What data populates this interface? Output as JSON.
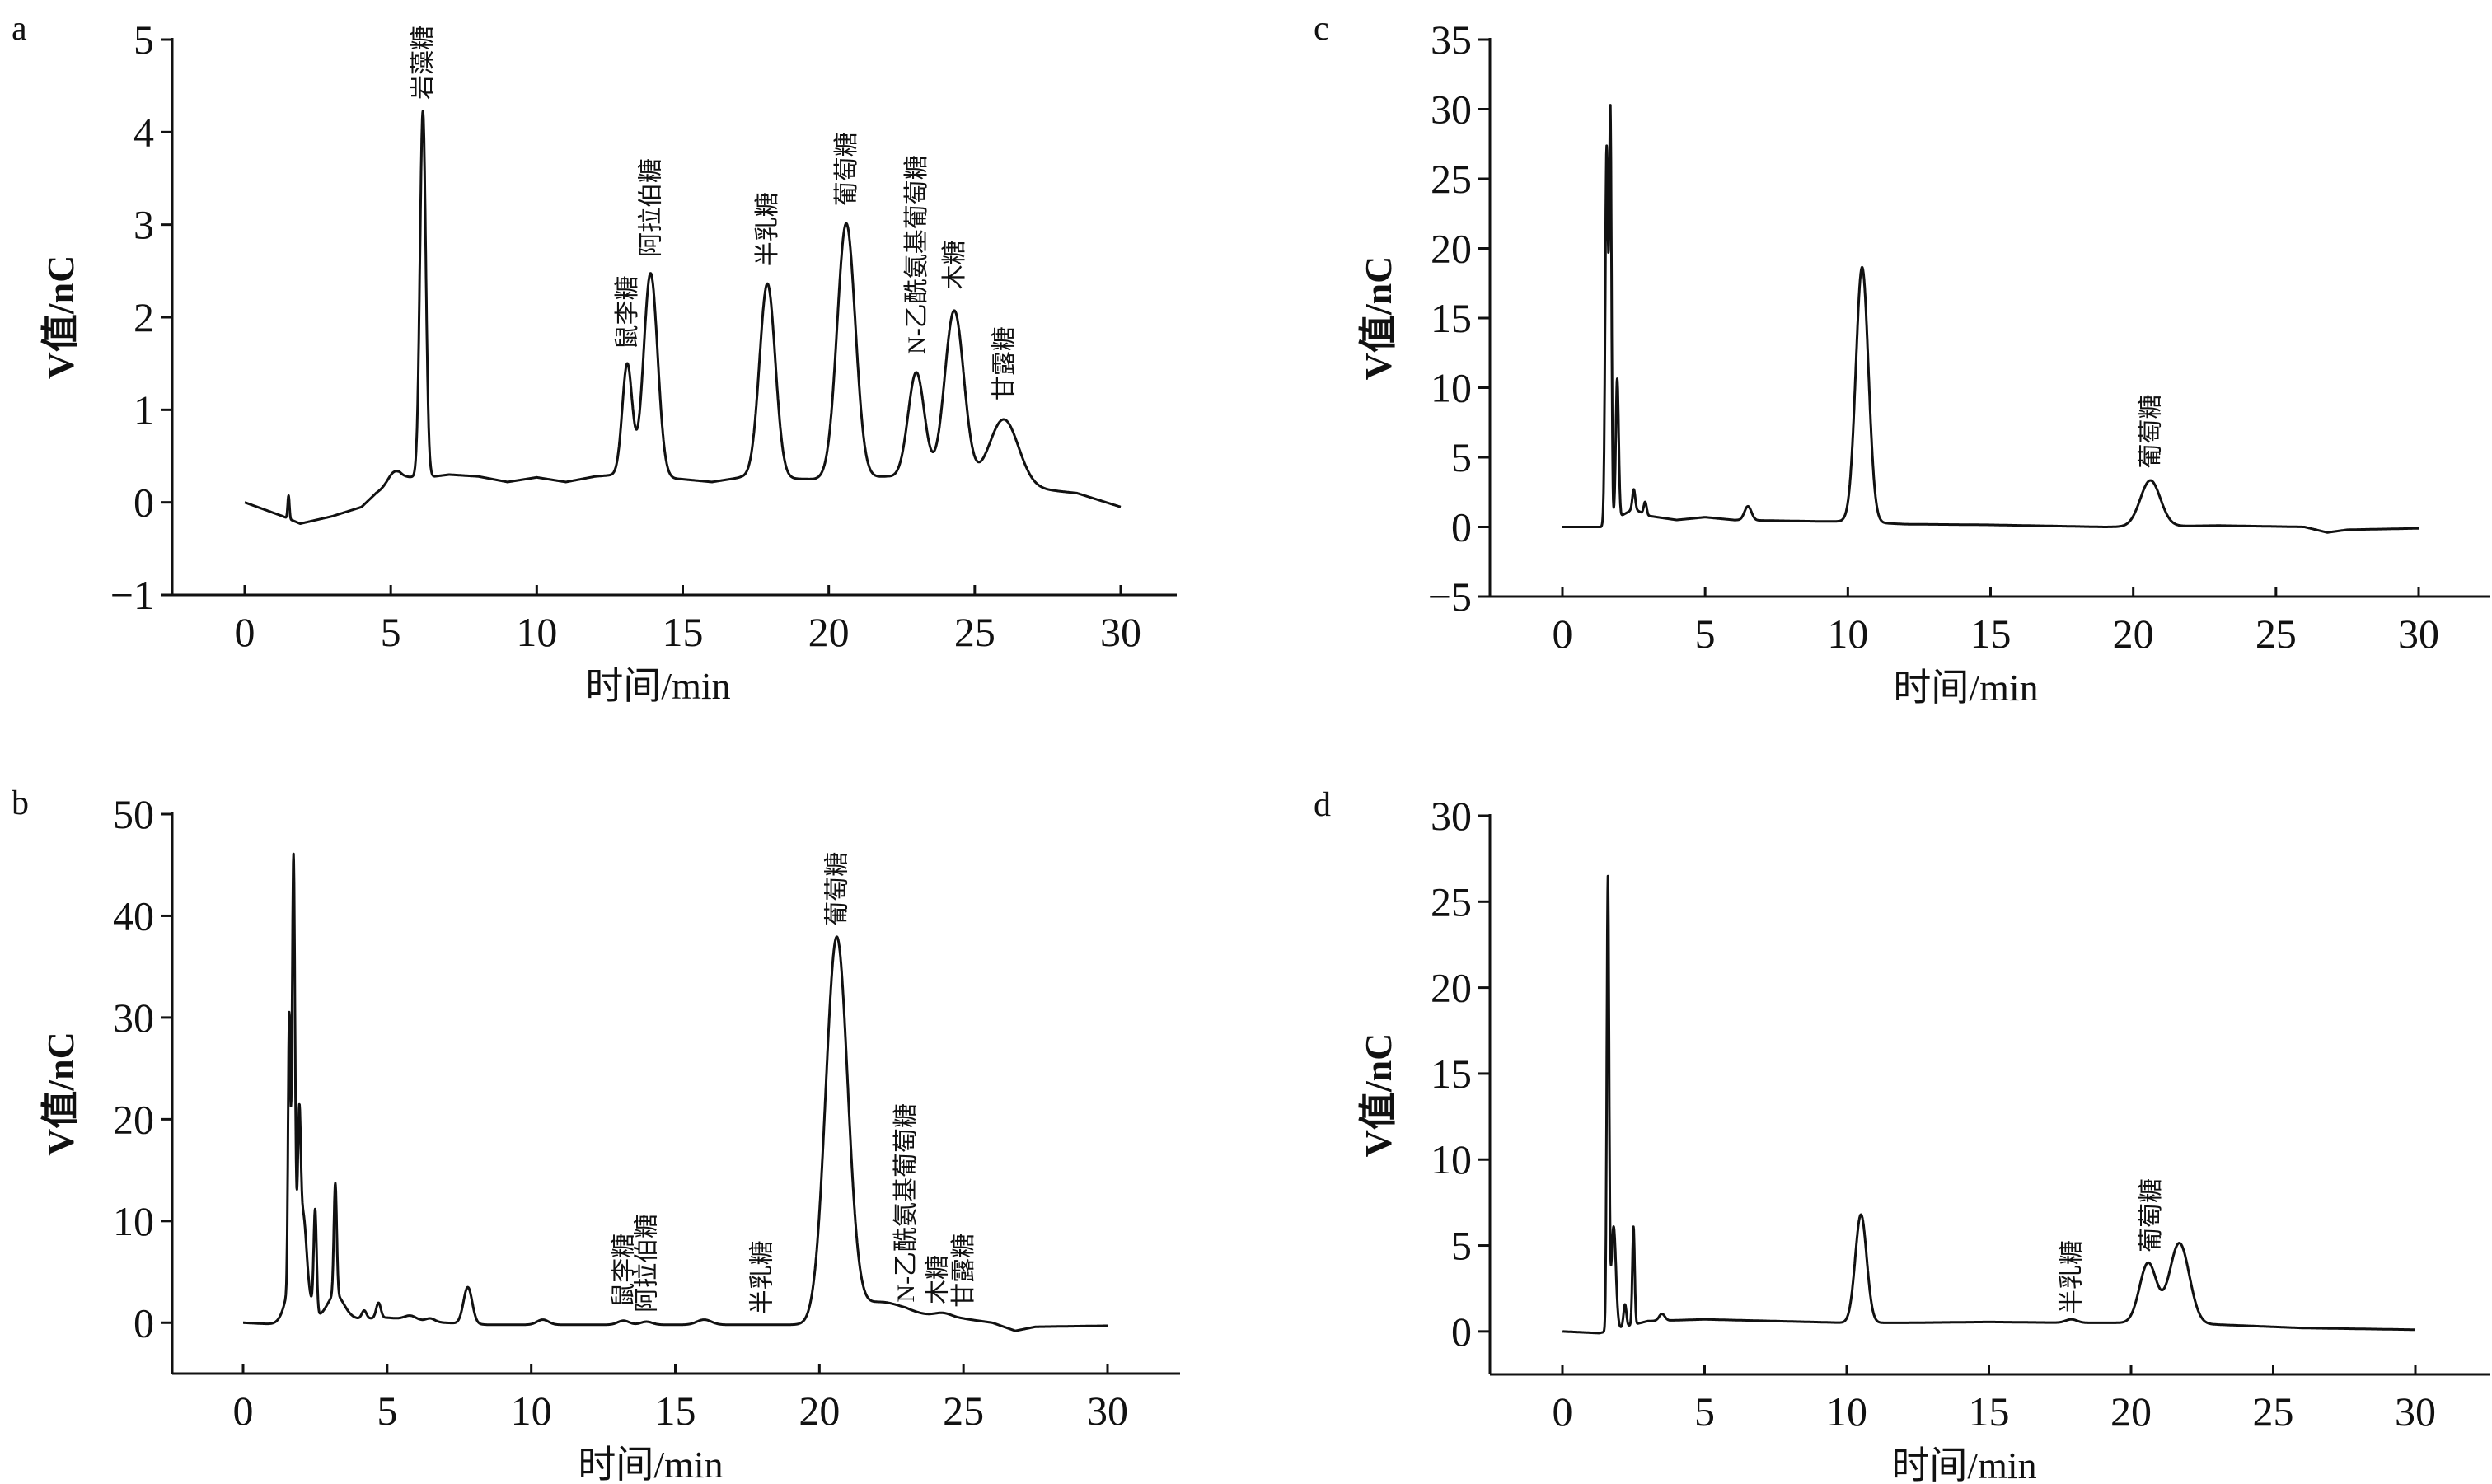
{
  "chart_data": [
    {
      "type": "line",
      "panel": "a",
      "xlabel": "时间/min",
      "ylabel": "V值/nC",
      "xlim": [
        0,
        30
      ],
      "ylim": [
        -1,
        5
      ],
      "xticks": [
        0,
        5,
        10,
        15,
        20,
        25,
        30
      ],
      "xtick_labels": [
        "0",
        "5",
        "10",
        "15",
        "20",
        "25",
        "30"
      ],
      "yticks": [
        -1,
        0,
        1,
        2,
        3,
        4,
        5
      ],
      "ytick_labels": [
        "−1",
        "0",
        "1",
        "2",
        "3",
        "4",
        "5"
      ],
      "baseline": [
        [
          0,
          0
        ],
        [
          1.3,
          -0.15
        ],
        [
          1.9,
          -0.23
        ],
        [
          3,
          -0.15
        ],
        [
          4,
          -0.05
        ],
        [
          4.5,
          0.1
        ],
        [
          5.3,
          0.27
        ],
        [
          6.5,
          0.28
        ],
        [
          7,
          0.3
        ],
        [
          8,
          0.28
        ],
        [
          9,
          0.22
        ],
        [
          10,
          0.27
        ],
        [
          11,
          0.22
        ],
        [
          12,
          0.28
        ],
        [
          12.8,
          0.3
        ],
        [
          15,
          0.25
        ],
        [
          16,
          0.22
        ],
        [
          17,
          0.27
        ],
        [
          19.5,
          0.25
        ],
        [
          22,
          0.28
        ],
        [
          27,
          0.15
        ],
        [
          28.5,
          0.1
        ],
        [
          29.5,
          0.0
        ],
        [
          30,
          -0.05
        ]
      ],
      "peaks": [
        [
          1.5,
          0.25,
          0.03
        ],
        [
          5.1,
          0.1,
          0.2
        ],
        [
          6.1,
          3.95,
          0.1
        ],
        [
          13.1,
          1.2,
          0.17
        ],
        [
          13.9,
          2.2,
          0.24
        ],
        [
          17.9,
          2.1,
          0.27
        ],
        [
          20.6,
          2.75,
          0.31
        ],
        [
          23.0,
          1.15,
          0.28
        ],
        [
          24.3,
          1.85,
          0.33
        ],
        [
          26.0,
          0.72,
          0.5
        ]
      ],
      "annotations": [
        {
          "text": "岩藻糖",
          "x": 6.1,
          "y": 4.35
        },
        {
          "text": "鼠李糖",
          "x": 13.1,
          "y": 1.65
        },
        {
          "text": "阿拉伯糖",
          "x": 13.9,
          "y": 2.65
        },
        {
          "text": "半乳糖",
          "x": 17.9,
          "y": 2.55
        },
        {
          "text": "葡萄糖",
          "x": 20.6,
          "y": 3.2
        },
        {
          "text": "N-乙酰氨基葡萄糖",
          "x": 23.0,
          "y": 1.6
        },
        {
          "text": "木糖",
          "x": 24.3,
          "y": 2.3
        },
        {
          "text": "甘露糖",
          "x": 26.0,
          "y": 1.1
        }
      ]
    },
    {
      "type": "line",
      "panel": "b",
      "xlabel": "时间/min",
      "ylabel": "V值/nC",
      "xlim": [
        0,
        30
      ],
      "ylim": [
        -5,
        50
      ],
      "xticks": [
        0,
        5,
        10,
        15,
        20,
        25,
        30
      ],
      "xtick_labels": [
        "0",
        "5",
        "10",
        "15",
        "20",
        "25",
        "30"
      ],
      "yticks": [
        0,
        10,
        20,
        30,
        40,
        50
      ],
      "ytick_labels": [
        "0",
        "10",
        "20",
        "30",
        "40",
        "50"
      ],
      "baseline": [
        [
          0,
          0
        ],
        [
          1.4,
          -0.2
        ],
        [
          3.5,
          0.3
        ],
        [
          5,
          0.5
        ],
        [
          7,
          0
        ],
        [
          8.5,
          -0.2
        ],
        [
          19.5,
          -0.2
        ],
        [
          23,
          0.8
        ],
        [
          25,
          0.4
        ],
        [
          26,
          0
        ],
        [
          26.8,
          -0.8
        ],
        [
          27.5,
          -0.4
        ],
        [
          30,
          -0.3
        ]
      ],
      "peaks": [
        [
          1.6,
          26,
          0.04
        ],
        [
          1.75,
          40,
          0.05
        ],
        [
          1.95,
          13,
          0.05
        ],
        [
          2.1,
          5,
          0.1
        ],
        [
          1.9,
          7,
          0.3
        ],
        [
          2.5,
          10,
          0.05
        ],
        [
          3.2,
          11,
          0.05
        ],
        [
          3.2,
          2.5,
          0.3
        ],
        [
          4.2,
          0.8,
          0.08
        ],
        [
          4.7,
          1.5,
          0.08
        ],
        [
          5.8,
          0.4,
          0.2
        ],
        [
          6.5,
          0.3,
          0.15
        ],
        [
          7.8,
          3.6,
          0.15
        ],
        [
          10.4,
          0.5,
          0.2
        ],
        [
          13.2,
          0.4,
          0.2
        ],
        [
          14.0,
          0.3,
          0.2
        ],
        [
          16.0,
          0.5,
          0.25
        ],
        [
          20.6,
          37.5,
          0.38
        ],
        [
          22.0,
          1.5,
          0.8
        ],
        [
          24.3,
          0.4,
          0.3
        ]
      ],
      "annotations": [
        {
          "text": "鼠李糖",
          "x": 13.2,
          "y": 1.5
        },
        {
          "text": "阿拉伯糖",
          "x": 14.0,
          "y": 1.0
        },
        {
          "text": "半乳糖",
          "x": 18.0,
          "y": 0.8
        },
        {
          "text": "葡萄糖",
          "x": 20.6,
          "y": 39
        },
        {
          "text": "N-乙酰氨基葡萄糖",
          "x": 23.0,
          "y": 2.0
        },
        {
          "text": "木糖",
          "x": 24.1,
          "y": 1.8
        },
        {
          "text": "甘露糖",
          "x": 25.0,
          "y": 1.5
        }
      ]
    },
    {
      "type": "line",
      "panel": "c",
      "xlabel": "时间/min",
      "ylabel": "V值/nC",
      "xlim": [
        0,
        30
      ],
      "ylim": [
        -5,
        35
      ],
      "xticks": [
        0,
        5,
        10,
        15,
        20,
        25,
        30
      ],
      "xtick_labels": [
        "0",
        "5",
        "10",
        "15",
        "20",
        "25",
        "30"
      ],
      "yticks": [
        -5,
        0,
        5,
        10,
        15,
        20,
        25,
        30,
        35
      ],
      "ytick_labels": [
        "−5",
        "0",
        "5",
        "10",
        "15",
        "20",
        "25",
        "30",
        "35"
      ],
      "baseline": [
        [
          0,
          0
        ],
        [
          1.35,
          0
        ],
        [
          2.5,
          1.3
        ],
        [
          3,
          0.8
        ],
        [
          4,
          0.5
        ],
        [
          5,
          0.7
        ],
        [
          6,
          0.5
        ],
        [
          9,
          0.4
        ],
        [
          10,
          0.4
        ],
        [
          12,
          0.2
        ],
        [
          15,
          0.15
        ],
        [
          19,
          0
        ],
        [
          23,
          0.1
        ],
        [
          26,
          0
        ],
        [
          26.8,
          -0.4
        ],
        [
          27.5,
          -0.2
        ],
        [
          30,
          -0.1
        ]
      ],
      "peaks": [
        [
          1.55,
          27,
          0.05
        ],
        [
          1.68,
          29,
          0.04
        ],
        [
          1.92,
          10,
          0.05
        ],
        [
          2.5,
          1.4,
          0.05
        ],
        [
          2.9,
          0.9,
          0.05
        ],
        [
          6.5,
          1.0,
          0.12
        ],
        [
          10.5,
          18.3,
          0.22
        ],
        [
          20.6,
          3.3,
          0.35
        ]
      ],
      "annotations": [
        {
          "text": "葡萄糖",
          "x": 20.6,
          "y": 4.2
        }
      ]
    },
    {
      "type": "line",
      "panel": "d",
      "xlabel": "时间/min",
      "ylabel": "V值/nC",
      "xlim": [
        0,
        30
      ],
      "ylim": [
        -2.5,
        30
      ],
      "xticks": [
        0,
        5,
        10,
        15,
        20,
        25,
        30
      ],
      "xtick_labels": [
        "0",
        "5",
        "10",
        "15",
        "20",
        "25",
        "30"
      ],
      "yticks": [
        0,
        5,
        10,
        15,
        20,
        25,
        30
      ],
      "ytick_labels": [
        "0",
        "5",
        "10",
        "15",
        "20",
        "25",
        "30"
      ],
      "baseline": [
        [
          0,
          0
        ],
        [
          1.3,
          -0.1
        ],
        [
          3,
          0.6
        ],
        [
          5,
          0.7
        ],
        [
          10,
          0.5
        ],
        [
          12,
          0.5
        ],
        [
          15,
          0.55
        ],
        [
          18,
          0.5
        ],
        [
          19.5,
          0.5
        ],
        [
          23,
          0.4
        ],
        [
          26,
          0.2
        ],
        [
          30,
          0.1
        ]
      ],
      "peaks": [
        [
          1.6,
          26.2,
          0.04
        ],
        [
          1.8,
          6,
          0.08
        ],
        [
          2.2,
          1.3,
          0.05
        ],
        [
          2.5,
          5.7,
          0.04
        ],
        [
          3.5,
          0.4,
          0.1
        ],
        [
          10.5,
          6.3,
          0.2
        ],
        [
          17.9,
          0.2,
          0.2
        ],
        [
          20.6,
          3.5,
          0.3
        ],
        [
          21.7,
          4.7,
          0.35
        ]
      ],
      "annotations": [
        {
          "text": "半乳糖",
          "x": 17.9,
          "y": 1.0
        },
        {
          "text": "葡萄糖",
          "x": 20.7,
          "y": 4.6
        }
      ]
    }
  ],
  "line_color": "#111111"
}
